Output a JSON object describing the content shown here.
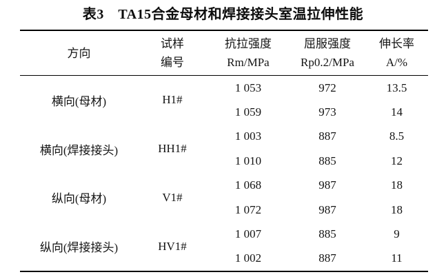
{
  "page": {
    "background": "#ffffff",
    "text_color": "#141414",
    "rule_color": "#000000"
  },
  "title": "表3　TA15合金母材和焊接接头室温拉伸性能",
  "table": {
    "headers": {
      "direction": "方向",
      "sample": [
        "试样",
        "编号"
      ],
      "tensile": [
        "抗拉强度",
        "Rm/MPa"
      ],
      "yield": [
        "屈服强度",
        "Rp0.2/MPa"
      ],
      "elongation": [
        "伸长率",
        "A/%"
      ]
    },
    "groups": [
      {
        "direction": "横向(母材)",
        "sample_id": "H1#",
        "rows": [
          {
            "rm": "1 053",
            "rp": "972",
            "a": "13.5"
          },
          {
            "rm": "1 059",
            "rp": "973",
            "a": "14"
          }
        ]
      },
      {
        "direction": "横向(焊接接头)",
        "sample_id": "HH1#",
        "rows": [
          {
            "rm": "1 003",
            "rp": "887",
            "a": "8.5"
          },
          {
            "rm": "1 010",
            "rp": "885",
            "a": "12"
          }
        ]
      },
      {
        "direction": "纵向(母材)",
        "sample_id": "V1#",
        "rows": [
          {
            "rm": "1 068",
            "rp": "987",
            "a": "18"
          },
          {
            "rm": "1 072",
            "rp": "987",
            "a": "18"
          }
        ]
      },
      {
        "direction": "纵向(焊接接头)",
        "sample_id": "HV1#",
        "rows": [
          {
            "rm": "1 007",
            "rp": "885",
            "a": "9"
          },
          {
            "rm": "1 002",
            "rp": "887",
            "a": "11"
          }
        ]
      }
    ]
  }
}
